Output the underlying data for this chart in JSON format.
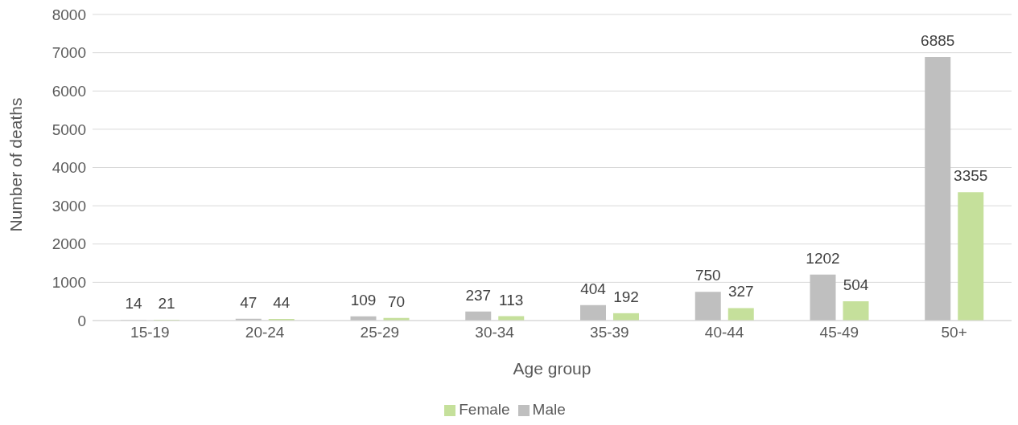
{
  "chart_data": {
    "type": "bar",
    "xlabel": "Age group",
    "ylabel": "Number of deaths",
    "categories": [
      "15-19",
      "20-24",
      "25-29",
      "30-34",
      "35-39",
      "40-44",
      "45-49",
      "50+"
    ],
    "series": [
      {
        "name": "Male",
        "color": "#bfbfbf",
        "values": [
          14,
          47,
          109,
          237,
          404,
          750,
          1202,
          6885
        ]
      },
      {
        "name": "Female",
        "color": "#c5e09b",
        "values": [
          21,
          44,
          70,
          113,
          192,
          327,
          504,
          3355
        ]
      }
    ],
    "ylim": [
      0,
      8000
    ],
    "yticks": [
      0,
      1000,
      2000,
      3000,
      4000,
      5000,
      6000,
      7000,
      8000
    ],
    "grid": "y",
    "legend": "bottom",
    "data_labels": true
  }
}
